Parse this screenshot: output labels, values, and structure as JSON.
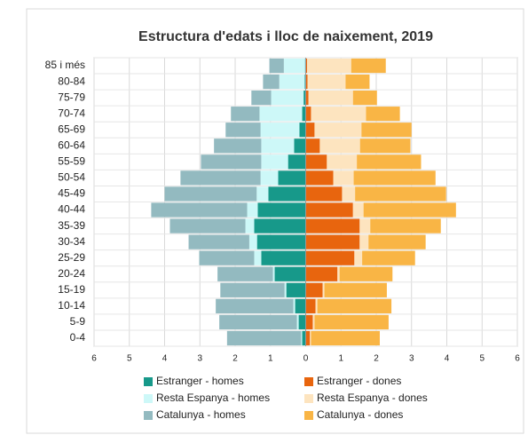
{
  "chart_data": {
    "type": "bar",
    "orientation": "horizontal",
    "stacked": true,
    "title": "Estructura d'edats i lloc de naixement, 2019",
    "categories": [
      "0-4",
      "5-9",
      "10-14",
      "15-19",
      "20-24",
      "25-29",
      "30-34",
      "35-39",
      "40-44",
      "45-49",
      "50-54",
      "55-59",
      "60-64",
      "65-69",
      "70-74",
      "75-79",
      "80-84",
      "85 i més"
    ],
    "series": [
      {
        "name": "Estranger - homes",
        "color": "#17998a",
        "values": [
          -0.1,
          -0.2,
          -0.3,
          -0.55,
          -0.88,
          -1.26,
          -1.38,
          -1.46,
          -1.36,
          -1.06,
          -0.78,
          -0.5,
          -0.33,
          -0.18,
          -0.1,
          -0.06,
          -0.03,
          -0.02
        ]
      },
      {
        "name": "Estranger - dones",
        "color": "#e8650e",
        "values": [
          0.12,
          0.2,
          0.28,
          0.48,
          0.9,
          1.38,
          1.53,
          1.53,
          1.34,
          1.03,
          0.78,
          0.6,
          0.4,
          0.25,
          0.15,
          0.08,
          0.05,
          0.04
        ]
      },
      {
        "name": "Resta Espanya - homes",
        "color": "#cdf8f8",
        "values": [
          -0.03,
          -0.05,
          -0.05,
          -0.05,
          -0.05,
          -0.2,
          -0.22,
          -0.25,
          -0.3,
          -0.33,
          -0.5,
          -0.76,
          -0.93,
          -1.1,
          -1.21,
          -0.92,
          -0.72,
          -0.6
        ]
      },
      {
        "name": "Resta Espanya - dones",
        "color": "#fde4bf",
        "values": [
          0.03,
          0.05,
          0.05,
          0.05,
          0.06,
          0.22,
          0.25,
          0.3,
          0.3,
          0.37,
          0.58,
          0.85,
          1.14,
          1.33,
          1.56,
          1.26,
          1.08,
          1.25
        ]
      },
      {
        "name": "Catalunya - homes",
        "color": "#93bac0",
        "values": [
          -2.1,
          -2.2,
          -2.2,
          -1.82,
          -1.57,
          -1.56,
          -1.72,
          -2.14,
          -2.72,
          -2.61,
          -2.27,
          -1.71,
          -1.34,
          -0.99,
          -0.81,
          -0.56,
          -0.46,
          -0.41
        ]
      },
      {
        "name": "Catalunya - dones",
        "color": "#f9b545",
        "values": [
          1.95,
          2.1,
          2.1,
          1.77,
          1.5,
          1.5,
          1.62,
          2.0,
          2.62,
          2.58,
          2.32,
          1.82,
          1.43,
          1.42,
          0.96,
          0.68,
          0.68,
          0.98
        ]
      }
    ],
    "xlim": [
      -6,
      6
    ],
    "xticks": [
      {
        "value": -6,
        "label": "6"
      },
      {
        "value": -5,
        "label": "5"
      },
      {
        "value": -4,
        "label": "4"
      },
      {
        "value": -3,
        "label": "3"
      },
      {
        "value": -2,
        "label": "2"
      },
      {
        "value": -1,
        "label": "1"
      },
      0,
      1,
      2,
      3,
      4,
      5,
      6
    ],
    "grid": true
  }
}
